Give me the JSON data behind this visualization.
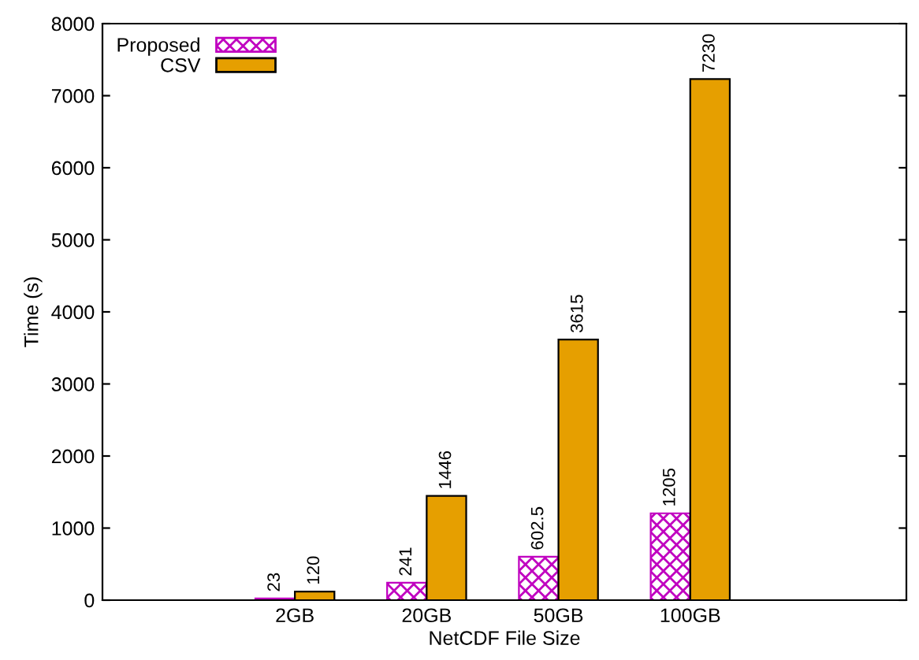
{
  "chart_data": {
    "type": "bar",
    "xlabel": "NetCDF File Size",
    "ylabel": "Time (s)",
    "categories": [
      "2GB",
      "20GB",
      "50GB",
      "100GB"
    ],
    "series": [
      {
        "name": "Proposed",
        "color": "#c000c0",
        "values": [
          23,
          241,
          602.5,
          1205
        ]
      },
      {
        "name": "CSV",
        "color": "#e69f00",
        "values": [
          120,
          1446,
          3615,
          7230
        ]
      }
    ],
    "ylim": [
      0,
      8000
    ],
    "yticks": [
      0,
      1000,
      2000,
      3000,
      4000,
      5000,
      6000,
      7000,
      8000
    ],
    "data_labels": true,
    "legend": "top left",
    "grid": false
  }
}
